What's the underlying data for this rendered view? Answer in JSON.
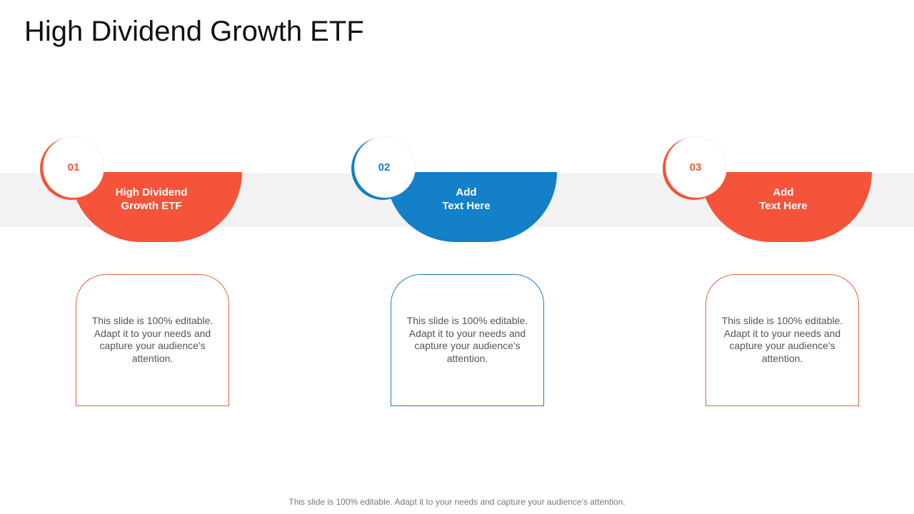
{
  "title": "High Dividend Growth ETF",
  "colors": {
    "orange": "#F5533A",
    "blue": "#1380C8",
    "band": "#F2F2F2"
  },
  "steps": [
    {
      "number": "01",
      "heading_line1": "High Dividend",
      "heading_line2": "Growth ETF",
      "color": "orange",
      "body": "This slide is 100% editable. Adapt it to your needs and capture your audience's attention."
    },
    {
      "number": "02",
      "heading_line1": "Add",
      "heading_line2": "Text Here",
      "color": "blue",
      "body": "This slide is 100% editable. Adapt it to your needs and capture your audience's attention."
    },
    {
      "number": "03",
      "heading_line1": "Add",
      "heading_line2": "Text Here",
      "color": "orange",
      "body": "This slide is 100% editable. Adapt it to your needs and capture your audience's attention."
    }
  ],
  "footer": "This slide is 100% editable. Adapt it to your needs and capture your audience's attention."
}
